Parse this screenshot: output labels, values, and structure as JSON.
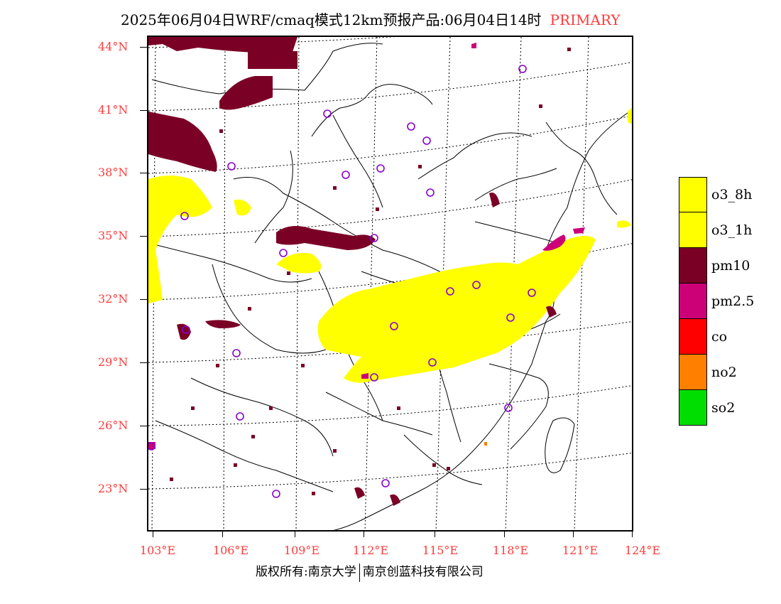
{
  "header": {
    "title": "2025年06月04日WRF/cmaq模式12km预报产品:06月04日14时",
    "tag": "PRIMARY"
  },
  "axes": {
    "lat_labels": [
      "44°N",
      "41°N",
      "38°N",
      "35°N",
      "32°N",
      "29°N",
      "26°N",
      "23°N"
    ],
    "lon_labels": [
      "103°E",
      "106°E",
      "109°E",
      "112°E",
      "115°E",
      "118°E",
      "121°E",
      "124°E"
    ]
  },
  "legend": {
    "items": [
      {
        "label": "o3_8h",
        "color": "#ffff00"
      },
      {
        "label": "o3_1h",
        "color": "#ffff00"
      },
      {
        "label": "pm10",
        "color": "#7a0026"
      },
      {
        "label": "pm2.5",
        "color": "#cc0077"
      },
      {
        "label": "co",
        "color": "#ff0000"
      },
      {
        "label": "no2",
        "color": "#ff7f00"
      },
      {
        "label": "so2",
        "color": "#00dd00"
      }
    ]
  },
  "colors": {
    "axis_label": "#ff3b3b",
    "station_marker": "#8800cc"
  },
  "footer": {
    "left": "版权所有:南京大学",
    "right": "南京创蓝科技有限公司"
  }
}
